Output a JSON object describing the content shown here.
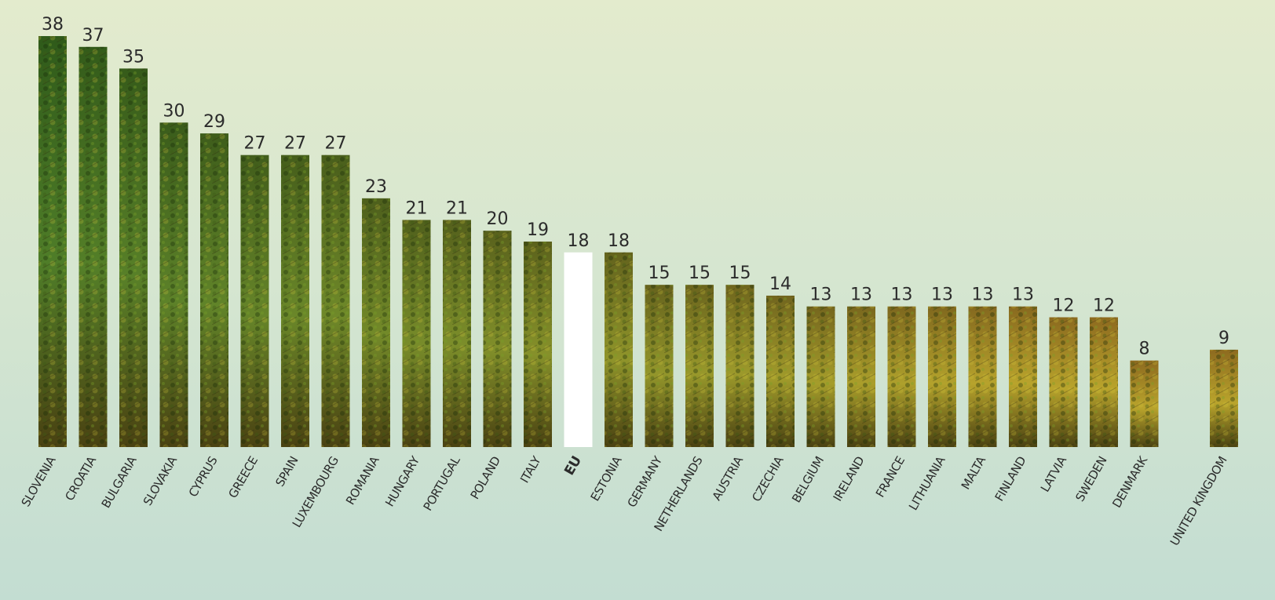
{
  "chart_data": {
    "type": "bar",
    "title": "",
    "xlabel": "",
    "ylabel": "",
    "ylim": [
      0,
      38
    ],
    "grid": false,
    "legend": "none",
    "highlight_category": "EU",
    "colors": {
      "bar_top_green": "#2f5a1a",
      "bar_mid_green": "#4f7d28",
      "bar_yellow": "#b9a42c",
      "bar_brown": "#8d6a1f",
      "highlight": "#ffffff",
      "text": "#2b2b2b"
    },
    "categories": [
      "SLOVENIA",
      "CROATIA",
      "BULGARIA",
      "SLOVAKIA",
      "CYPRUS",
      "GREECE",
      "SPAIN",
      "LUXEMBOURG",
      "ROMANIA",
      "HUNGARY",
      "PORTUGAL",
      "POLAND",
      "ITALY",
      "EU",
      "ESTONIA",
      "GERMANY",
      "NETHERLANDS",
      "AUSTRIA",
      "CZECHIA",
      "BELGIUM",
      "IRELAND",
      "FRANCE",
      "LITHUANIA",
      "MALTA",
      "FINLAND",
      "LATVIA",
      "SWEDEN",
      "DENMARK",
      "UNITED KINGDOM"
    ],
    "values": [
      38,
      37,
      35,
      30,
      29,
      27,
      27,
      27,
      23,
      21,
      21,
      20,
      19,
      18,
      18,
      15,
      15,
      15,
      14,
      13,
      13,
      13,
      13,
      13,
      13,
      12,
      12,
      8,
      9
    ]
  }
}
